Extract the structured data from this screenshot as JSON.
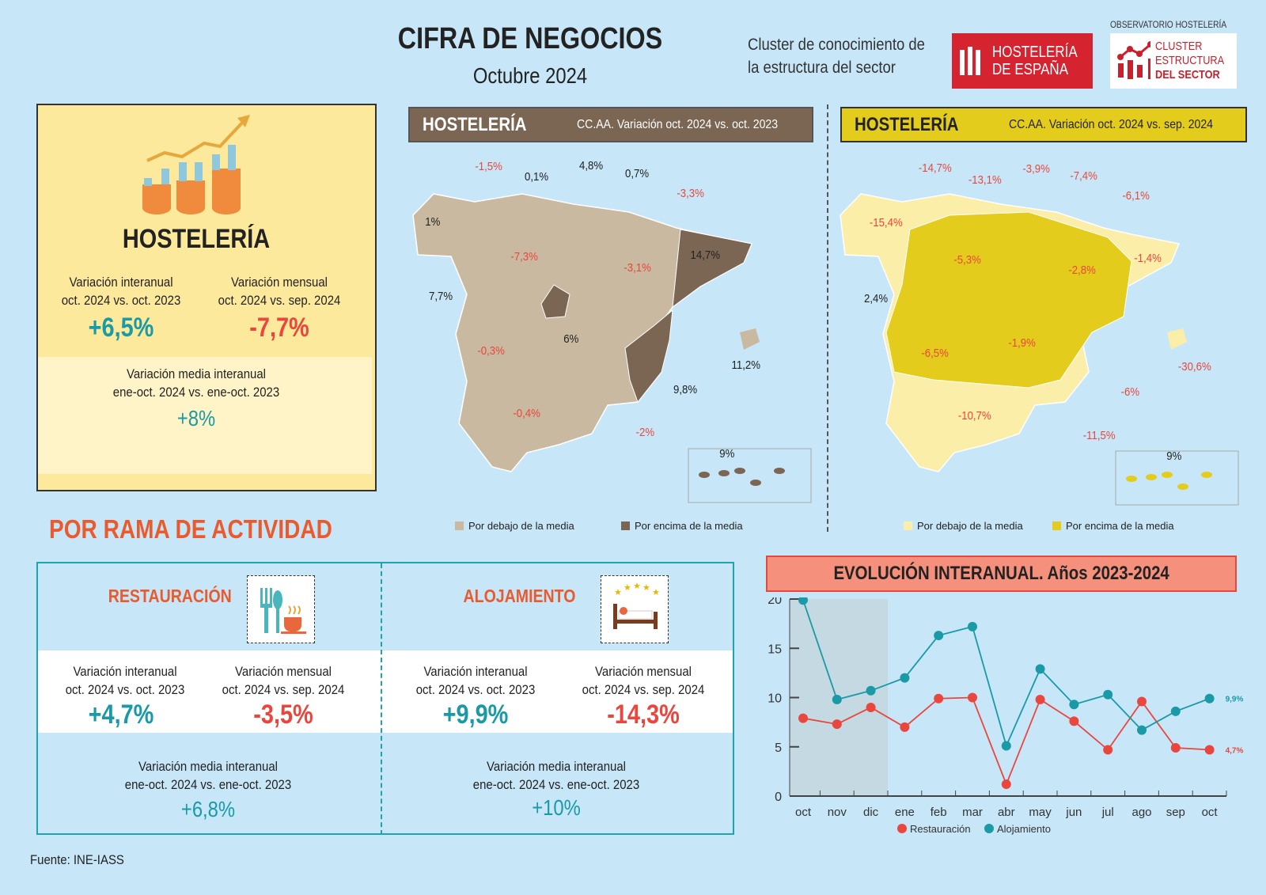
{
  "header": {
    "title": "CIFRA DE NEGOCIOS",
    "subtitle": "Octubre 2024",
    "cluster_line1": "Cluster de conocimiento de",
    "cluster_line2": "la estructura del sector",
    "logo1_line1": "HOSTELERÍA",
    "logo1_line2": "DE ESPAÑA",
    "observatorio": "OBSERVATORIO HOSTELERÍA",
    "logo2_line1": "CLUSTER",
    "logo2_line2": "ESTRUCTURA",
    "logo2_line3": "DEL SECTOR"
  },
  "summary": {
    "title": "HOSTELERÍA",
    "interanual_label1": "Variación interanual",
    "interanual_label2": "oct. 2024 vs. oct. 2023",
    "interanual_value": "+6,5%",
    "mensual_label1": "Variación mensual",
    "mensual_label2": "oct. 2024 vs. sep. 2024",
    "mensual_value": "-7,7%",
    "media_label1": "Variación media interanual",
    "media_label2": "ene-oct. 2024 vs. ene-oct. 2023",
    "media_value": "+8%"
  },
  "map1": {
    "title": "HOSTELERÍA",
    "subtitle": "CC.AA. Variación oct. 2024 vs. oct. 2023",
    "colors": {
      "below": "#c9b9a0",
      "above": "#7b6654"
    },
    "legend_below": "Por debajo de la media",
    "legend_above": "Por encima de la media",
    "labels": [
      "-1,5%",
      "0,1%",
      "4,8%",
      "0,7%",
      "-3,3%",
      "1%",
      "-7,3%",
      "-3,1%",
      "14,7%",
      "7,7%",
      "6%",
      "-0,3%",
      "11,2%",
      "9,8%",
      "-0,4%",
      "-2%",
      "9%"
    ]
  },
  "map2": {
    "title": "HOSTELERÍA",
    "subtitle": "CC.AA. Variación oct. 2024 vs. sep. 2024",
    "colors": {
      "below": "#fbeea8",
      "above": "#e4cc1c"
    },
    "legend_below": "Por debajo de la media",
    "legend_above": "Por encima de la media",
    "labels": [
      "-14,7%",
      "-13,1%",
      "-3,9%",
      "-7,4%",
      "-6,1%",
      "-15,4%",
      "-5,3%",
      "-2,8%",
      "-1,4%",
      "2,4%",
      "-6,5%",
      "-1,9%",
      "-30,6%",
      "-6%",
      "-10,7%",
      "-11,5%",
      "9%"
    ]
  },
  "rama": {
    "title": "POR RAMA DE ACTIVIDAD",
    "restauracion": {
      "title": "RESTAURACIÓN",
      "icon": "cutlery-coffee-icon",
      "interanual_label1": "Variación interanual",
      "interanual_label2": "oct. 2024 vs. oct. 2023",
      "interanual_value": "+4,7%",
      "mensual_label1": "Variación mensual",
      "mensual_label2": "oct. 2024 vs. sep. 2024",
      "mensual_value": "-3,5%",
      "media_label1": "Variación media interanual",
      "media_label2": "ene-oct. 2024 vs. ene-oct. 2023",
      "media_value": "+6,8%"
    },
    "alojamiento": {
      "title": "ALOJAMIENTO",
      "icon": "hotel-bed-icon",
      "interanual_label1": "Variación interanual",
      "interanual_label2": "oct. 2024 vs. oct. 2023",
      "interanual_value": "+9,9%",
      "mensual_label1": "Variación mensual",
      "mensual_label2": "oct. 2024 vs. sep. 2024",
      "mensual_value": "-14,3%",
      "media_label1": "Variación media interanual",
      "media_label2": "ene-oct. 2024 vs. ene-oct. 2023",
      "media_value": "+10%"
    }
  },
  "chart_data": {
    "type": "line",
    "title": "EVOLUCIÓN INTERANUAL. Años 2023-2024",
    "categories": [
      "oct",
      "nov",
      "dic",
      "ene",
      "feb",
      "mar",
      "abr",
      "may",
      "jun",
      "jul",
      "ago",
      "sep",
      "oct"
    ],
    "ylim": [
      0,
      20
    ],
    "yticks": [
      "0",
      "5",
      "10",
      "15",
      "20"
    ],
    "shaded_range": [
      "oct",
      "dic"
    ],
    "legend_position": "bottom",
    "series": [
      {
        "name": "Restauración",
        "color": "#e9473d",
        "values": [
          7.9,
          7.3,
          9.0,
          7.0,
          9.9,
          10.0,
          1.2,
          9.8,
          7.6,
          4.7,
          9.6,
          4.9,
          4.7
        ],
        "end_label": "4,7%"
      },
      {
        "name": "Alojamiento",
        "color": "#1a9aa6",
        "values": [
          19.9,
          9.8,
          10.7,
          12.0,
          16.3,
          17.2,
          5.1,
          12.9,
          9.3,
          10.3,
          6.7,
          8.6,
          9.9
        ],
        "end_label": "9,9%"
      }
    ]
  },
  "footer": {
    "source": "Fuente: INE-IASS"
  }
}
